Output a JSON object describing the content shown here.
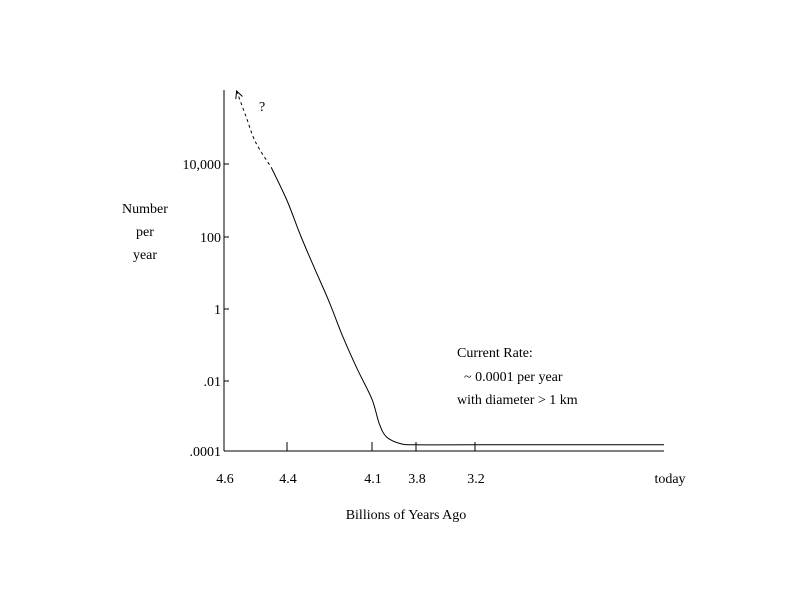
{
  "chart_data": {
    "type": "line",
    "title": "",
    "xlabel": "Billions of Years Ago",
    "ylabel_lines": [
      "Number",
      "per",
      "year"
    ],
    "y_scale": "log",
    "grid": false,
    "x_ticks": [
      {
        "value": 4.6,
        "label": "4.6"
      },
      {
        "value": 4.4,
        "label": "4.4"
      },
      {
        "value": 4.1,
        "label": "4.1"
      },
      {
        "value": 3.8,
        "label": "3.8"
      },
      {
        "value": 3.2,
        "label": "3.2"
      },
      {
        "value": 0,
        "label": "today"
      }
    ],
    "y_ticks": [
      {
        "value": 0.0001,
        "label": ".0001"
      },
      {
        "value": 0.01,
        "label": ".01"
      },
      {
        "value": 1,
        "label": "1"
      },
      {
        "value": 100,
        "label": "100"
      },
      {
        "value": 10000,
        "label": "10,000"
      }
    ],
    "series": [
      {
        "style": "solid",
        "points": [
          [
            4.45,
            8000
          ],
          [
            4.4,
            1000
          ],
          [
            4.35,
            100
          ],
          [
            4.3,
            12
          ],
          [
            4.25,
            1.5
          ],
          [
            4.2,
            0.15
          ],
          [
            4.15,
            0.02
          ],
          [
            4.1,
            0.003
          ],
          [
            4.05,
            0.0006
          ],
          [
            4.0,
            0.00025
          ],
          [
            3.9,
            0.00016
          ],
          [
            3.8,
            0.00015
          ],
          [
            3.2,
            0.00015
          ],
          [
            0,
            0.00015
          ]
        ]
      },
      {
        "style": "dashed",
        "points": [
          [
            4.56,
            1000000
          ],
          [
            4.53,
            200000
          ],
          [
            4.5,
            40000
          ],
          [
            4.45,
            8000
          ]
        ]
      }
    ],
    "annotations": {
      "question": "?",
      "current_rate_lines": [
        "Current Rate:",
        "~ 0.0001 per year",
        "with diameter > 1 km"
      ]
    }
  }
}
